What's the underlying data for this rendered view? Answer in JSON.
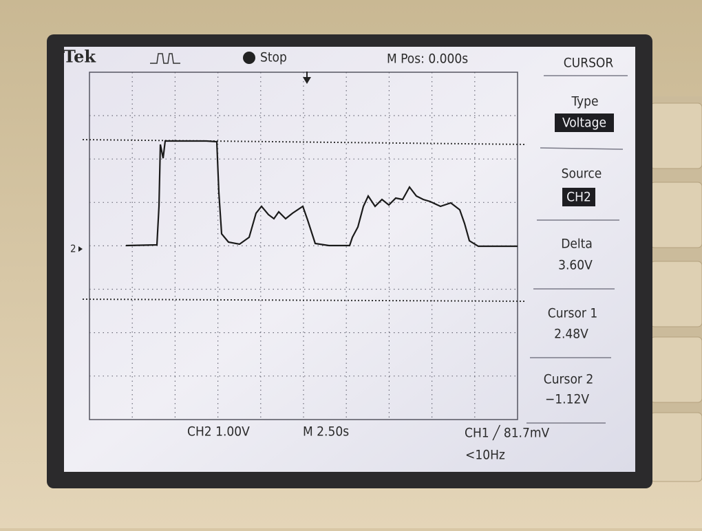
{
  "header": {
    "brand": "Tek",
    "status": "Stop",
    "position": "M Pos: 0.000s",
    "channel_marker": "2"
  },
  "menu": {
    "title": "CURSOR",
    "items": [
      {
        "label": "Type",
        "value": "Voltage"
      },
      {
        "label": "Source",
        "value": "CH2"
      },
      {
        "label": "Delta",
        "value": "3.60V"
      },
      {
        "label": "Cursor 1",
        "value": "2.48V"
      },
      {
        "label": "Cursor 2",
        "value": "−1.12V"
      }
    ]
  },
  "footer": {
    "vertical": "CH2 1.00V",
    "horizontal": "M 2.50s",
    "trigger": "CH1 ╱ 81.7mV",
    "frequency": "<10Hz"
  }
}
